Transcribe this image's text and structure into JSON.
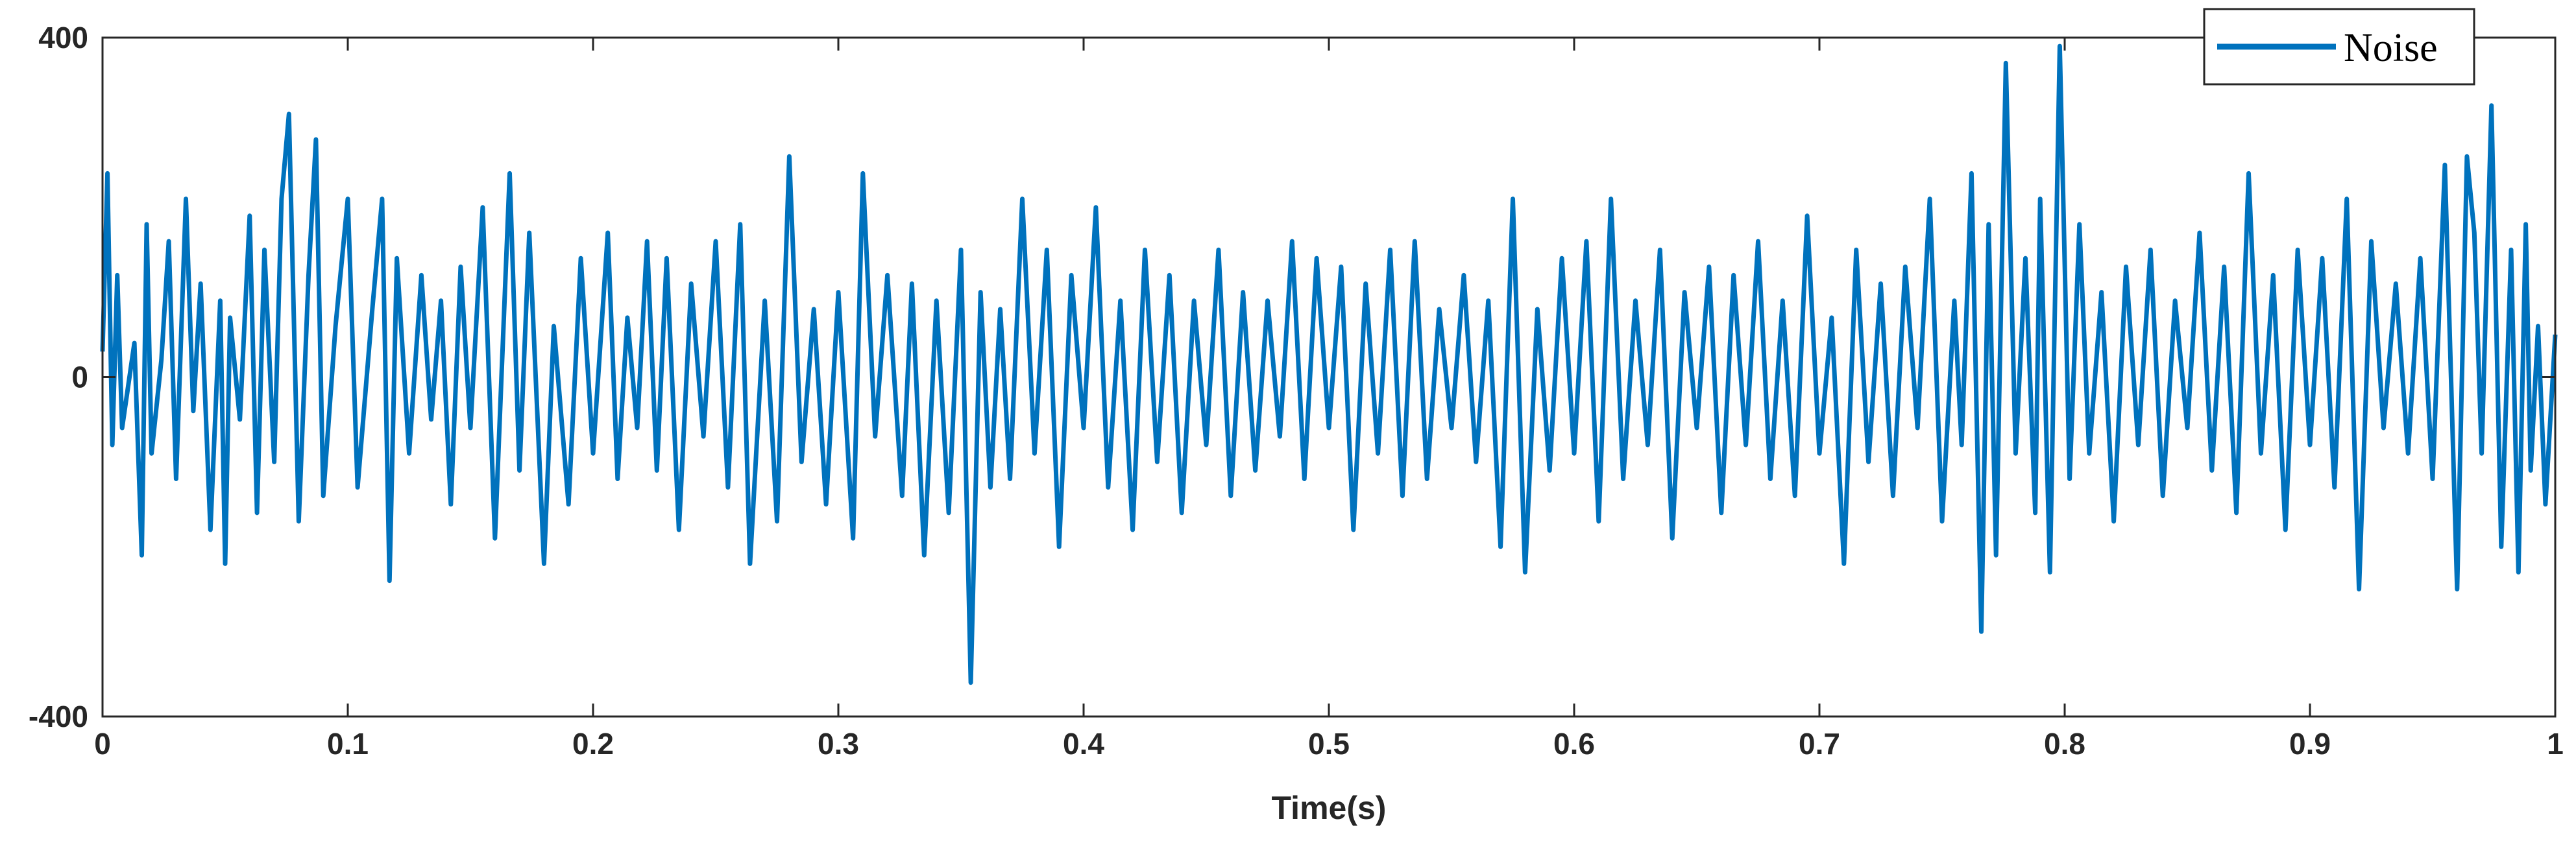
{
  "chart_data": {
    "type": "line",
    "title": "",
    "xlabel": "Time(s)",
    "ylabel": "",
    "xlim": [
      0,
      1
    ],
    "ylim": [
      -400,
      400
    ],
    "xticks": [
      0,
      0.1,
      0.2,
      0.3,
      0.4,
      0.5,
      0.6,
      0.7,
      0.8,
      0.9,
      1
    ],
    "xtick_labels": [
      "0",
      "0.1",
      "0.2",
      "0.3",
      "0.4",
      "0.5",
      "0.6",
      "0.7",
      "0.8",
      "0.9",
      "1"
    ],
    "yticks": [
      -400,
      0,
      400
    ],
    "ytick_labels": [
      "-400",
      "0",
      "400"
    ],
    "grid": false,
    "legend_position": "top-right",
    "series": [
      {
        "name": "Noise",
        "color": "#0072BD",
        "x": [
          0,
          0.002,
          0.004,
          0.006,
          0.008,
          0.013,
          0.016,
          0.018,
          0.02,
          0.024,
          0.027,
          0.03,
          0.034,
          0.037,
          0.04,
          0.044,
          0.048,
          0.05,
          0.052,
          0.056,
          0.06,
          0.063,
          0.066,
          0.07,
          0.073,
          0.076,
          0.08,
          0.084,
          0.087,
          0.09,
          0.095,
          0.1,
          0.104,
          0.11,
          0.114,
          0.117,
          0.12,
          0.125,
          0.13,
          0.134,
          0.138,
          0.142,
          0.146,
          0.15,
          0.155,
          0.16,
          0.166,
          0.17,
          0.174,
          0.18,
          0.184,
          0.19,
          0.195,
          0.2,
          0.206,
          0.21,
          0.214,
          0.218,
          0.222,
          0.226,
          0.23,
          0.235,
          0.24,
          0.245,
          0.25,
          0.255,
          0.26,
          0.264,
          0.27,
          0.275,
          0.28,
          0.285,
          0.29,
          0.295,
          0.3,
          0.306,
          0.31,
          0.315,
          0.32,
          0.326,
          0.33,
          0.335,
          0.34,
          0.345,
          0.35,
          0.354,
          0.358,
          0.362,
          0.366,
          0.37,
          0.375,
          0.38,
          0.385,
          0.39,
          0.395,
          0.4,
          0.405,
          0.41,
          0.415,
          0.42,
          0.425,
          0.43,
          0.435,
          0.44,
          0.445,
          0.45,
          0.455,
          0.46,
          0.465,
          0.47,
          0.475,
          0.48,
          0.485,
          0.49,
          0.495,
          0.5,
          0.505,
          0.51,
          0.515,
          0.52,
          0.525,
          0.53,
          0.535,
          0.54,
          0.545,
          0.55,
          0.555,
          0.56,
          0.565,
          0.57,
          0.575,
          0.58,
          0.585,
          0.59,
          0.595,
          0.6,
          0.605,
          0.61,
          0.615,
          0.62,
          0.625,
          0.63,
          0.635,
          0.64,
          0.645,
          0.65,
          0.655,
          0.66,
          0.665,
          0.67,
          0.675,
          0.68,
          0.685,
          0.69,
          0.695,
          0.7,
          0.705,
          0.71,
          0.715,
          0.72,
          0.725,
          0.73,
          0.735,
          0.74,
          0.745,
          0.75,
          0.755,
          0.758,
          0.762,
          0.766,
          0.769,
          0.772,
          0.776,
          0.78,
          0.784,
          0.788,
          0.79,
          0.794,
          0.798,
          0.802,
          0.806,
          0.81,
          0.815,
          0.82,
          0.825,
          0.83,
          0.835,
          0.84,
          0.845,
          0.85,
          0.855,
          0.86,
          0.865,
          0.87,
          0.875,
          0.88,
          0.885,
          0.89,
          0.895,
          0.9,
          0.905,
          0.91,
          0.915,
          0.92,
          0.925,
          0.93,
          0.935,
          0.94,
          0.945,
          0.95,
          0.955,
          0.96,
          0.964,
          0.967,
          0.97,
          0.974,
          0.978,
          0.982,
          0.985,
          0.988,
          0.99,
          0.993,
          0.996,
          1.0
        ],
        "y": [
          30,
          240,
          -80,
          120,
          -60,
          40,
          -210,
          180,
          -90,
          20,
          160,
          -120,
          210,
          -40,
          110,
          -180,
          90,
          -220,
          70,
          -50,
          190,
          -160,
          150,
          -100,
          210,
          310,
          -170,
          120,
          280,
          -140,
          60,
          210,
          -130,
          80,
          210,
          -240,
          140,
          -90,
          120,
          -50,
          90,
          -150,
          130,
          -60,
          200,
          -190,
          240,
          -110,
          170,
          -220,
          60,
          -150,
          140,
          -90,
          170,
          -120,
          70,
          -60,
          160,
          -110,
          140,
          -180,
          110,
          -70,
          160,
          -130,
          180,
          -220,
          90,
          -170,
          260,
          -100,
          80,
          -150,
          100,
          -190,
          240,
          -70,
          120,
          -140,
          110,
          -210,
          90,
          -160,
          150,
          -360,
          100,
          -130,
          80,
          -120,
          210,
          -90,
          150,
          -200,
          120,
          -60,
          200,
          -130,
          90,
          -180,
          150,
          -100,
          120,
          -160,
          90,
          -80,
          150,
          -140,
          100,
          -110,
          90,
          -70,
          160,
          -120,
          140,
          -60,
          130,
          -180,
          110,
          -90,
          150,
          -140,
          160,
          -120,
          80,
          -60,
          120,
          -100,
          90,
          -200,
          210,
          -230,
          80,
          -110,
          140,
          -90,
          160,
          -170,
          210,
          -120,
          90,
          -80,
          150,
          -190,
          100,
          -60,
          130,
          -160,
          120,
          -80,
          160,
          -120,
          90,
          -140,
          190,
          -90,
          70,
          -220,
          150,
          -100,
          110,
          -140,
          130,
          -60,
          210,
          -170,
          90,
          -80,
          240,
          -300,
          180,
          -210,
          370,
          -90,
          140,
          -160,
          210,
          -230,
          390,
          -120,
          180,
          -90,
          100,
          -170,
          130,
          -80,
          150,
          -140,
          90,
          -60,
          170,
          -110,
          130,
          -160,
          240,
          -90,
          120,
          -180,
          150,
          -80,
          140,
          -130,
          210,
          -250,
          160,
          -60,
          110,
          -90,
          140,
          -120,
          250,
          -250,
          260,
          170,
          -90,
          320,
          -200,
          150,
          -230,
          180,
          -110,
          60,
          -150,
          50
        ]
      }
    ]
  }
}
